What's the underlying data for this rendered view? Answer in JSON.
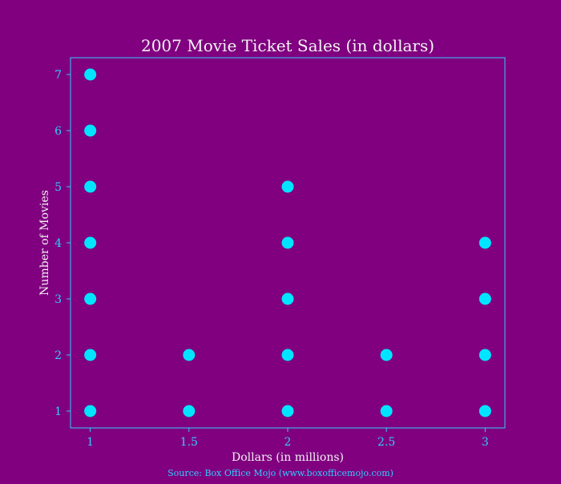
{
  "chart_data": {
    "type": "scatter",
    "title": "2007 Movie Ticket Sales (in dollars)",
    "xlabel": "Dollars (in millions)",
    "ylabel": "Number of Movies",
    "source": "Source: Box Office Mojo (www.boxofficemojo.com)",
    "xlim": [
      0.9,
      3.1
    ],
    "ylim": [
      0.7,
      7.3
    ],
    "x_ticks": [
      1,
      1.5,
      2,
      2.5,
      3
    ],
    "x_tick_labels": [
      "1",
      "1.5",
      "2",
      "2.5",
      "3"
    ],
    "y_ticks": [
      1,
      2,
      3,
      4,
      5,
      6,
      7
    ],
    "y_tick_labels": [
      "1",
      "2",
      "3",
      "4",
      "5",
      "6",
      "7"
    ],
    "grid": false,
    "points": [
      {
        "x": 1,
        "y": 1
      },
      {
        "x": 1,
        "y": 2
      },
      {
        "x": 1,
        "y": 3
      },
      {
        "x": 1,
        "y": 4
      },
      {
        "x": 1,
        "y": 5
      },
      {
        "x": 1,
        "y": 6
      },
      {
        "x": 1,
        "y": 7
      },
      {
        "x": 1.5,
        "y": 1
      },
      {
        "x": 1.5,
        "y": 2
      },
      {
        "x": 2,
        "y": 1
      },
      {
        "x": 2,
        "y": 2
      },
      {
        "x": 2,
        "y": 3
      },
      {
        "x": 2,
        "y": 4
      },
      {
        "x": 2,
        "y": 5
      },
      {
        "x": 2.5,
        "y": 1
      },
      {
        "x": 2.5,
        "y": 2
      },
      {
        "x": 3,
        "y": 1
      },
      {
        "x": 3,
        "y": 2
      },
      {
        "x": 3,
        "y": 3
      },
      {
        "x": 3,
        "y": 4
      }
    ],
    "colors": {
      "background": "#800080",
      "marker": "#00e5ff",
      "axis": "#33ccff",
      "title": "#f3f3f3"
    }
  }
}
